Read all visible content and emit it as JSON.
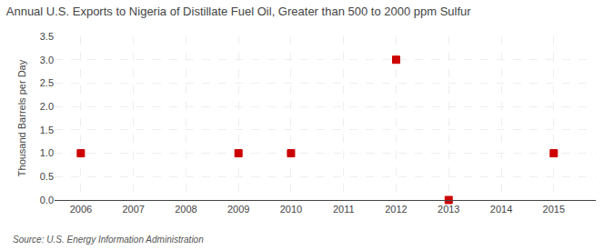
{
  "chart_data": {
    "type": "scatter",
    "title": "Annual U.S. Exports to Nigeria of Distillate Fuel Oil, Greater than 500 to 2000 ppm Sulfur",
    "ylabel": "Thousand Barrels per Day",
    "annotations": [
      "Source: U.S. Energy Information Administration"
    ],
    "x": [
      2006,
      2009,
      2010,
      2012,
      2013,
      2015
    ],
    "values": [
      1.0,
      1.0,
      1.0,
      3.0,
      0.0,
      1.0
    ],
    "color": "#cc0000",
    "marker": "square",
    "xlim": [
      2005.5,
      2015.8
    ],
    "xticks": [
      2006,
      2007,
      2008,
      2009,
      2010,
      2011,
      2012,
      2013,
      2014,
      2015
    ],
    "ylim": [
      0.0,
      3.5
    ],
    "yticks": [
      {
        "value": 0.0,
        "label": "0.0"
      },
      0.5,
      {
        "value": 1.0,
        "label": "1.0"
      },
      1.5,
      {
        "value": 2.0,
        "label": "2.0"
      },
      2.5,
      {
        "value": 3.0,
        "label": "3.0"
      },
      3.5
    ],
    "grid": true
  }
}
